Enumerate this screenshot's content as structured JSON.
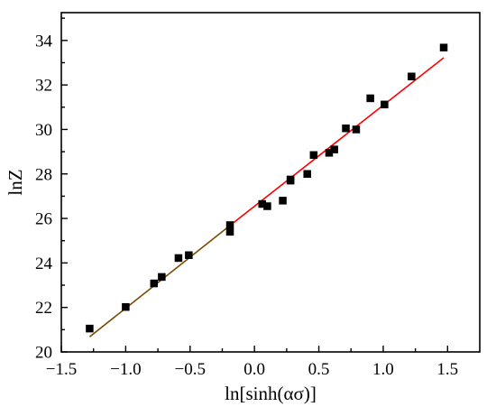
{
  "chart_data": {
    "type": "scatter",
    "title": "",
    "xlabel": "ln[sinh(ασ)]",
    "ylabel": "lnZ",
    "xlim": [
      -1.5,
      1.75
    ],
    "ylim": [
      20,
      35.25
    ],
    "xticks": [
      -1.5,
      -1.0,
      -0.5,
      0.0,
      0.5,
      1.0,
      1.5
    ],
    "xtick_labels": [
      "−1.5",
      "−1.0",
      "−0.5",
      "0.0",
      "0.5",
      "1.0",
      "1.5"
    ],
    "yticks": [
      20,
      22,
      24,
      26,
      28,
      30,
      32,
      34
    ],
    "ytick_labels": [
      "20",
      "22",
      "24",
      "26",
      "28",
      "30",
      "32",
      "34"
    ],
    "grid": false,
    "series": [
      {
        "kind": "points",
        "marker": "square",
        "color": "#000000",
        "x": [
          -1.28,
          -1.0,
          -0.78,
          -0.72,
          -0.59,
          -0.51,
          -0.19,
          -0.19,
          0.06,
          0.1,
          0.22,
          0.28,
          0.28,
          0.41,
          0.46,
          0.58,
          0.62,
          0.71,
          0.79,
          0.9,
          1.01,
          1.22,
          1.47
        ],
        "y": [
          21.05,
          22.02,
          23.08,
          23.37,
          24.22,
          24.35,
          25.7,
          25.4,
          26.65,
          26.55,
          26.8,
          27.7,
          27.75,
          28.0,
          28.85,
          28.95,
          29.1,
          30.05,
          30.0,
          31.4,
          31.12,
          32.38,
          33.68
        ]
      },
      {
        "kind": "fit-line",
        "x": [
          -1.28,
          -0.16
        ],
        "y": [
          20.68,
          25.82
        ],
        "color": "#7a4a00"
      },
      {
        "kind": "fit-line",
        "x": [
          -0.16,
          1.47
        ],
        "y": [
          25.82,
          33.22
        ],
        "color": "#ff0000"
      }
    ]
  }
}
